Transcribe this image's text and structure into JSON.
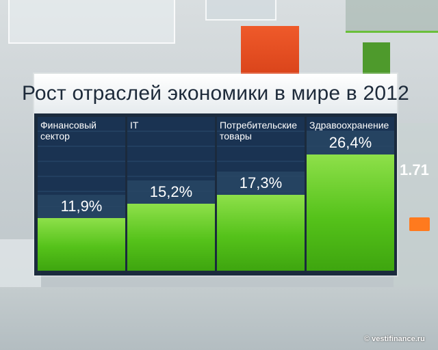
{
  "chart_data": {
    "type": "bar",
    "title": "Рост отраслей экономики в мире в 2012",
    "categories": [
      "Финансовый\nсектор",
      "IT",
      "Потребительские\nтовары",
      "Здравоохранение"
    ],
    "values": [
      11.9,
      15.2,
      17.3,
      26.4
    ],
    "value_labels": [
      "11,9%",
      "15,2%",
      "17,3%",
      "26,4%"
    ],
    "ylim": [
      0,
      35
    ],
    "grid": false,
    "colors": {
      "bar": "#55c21a",
      "panel": "#0c1c30"
    }
  },
  "background": {
    "side_value": "1.71"
  },
  "watermark": "© vestifinance.ru"
}
